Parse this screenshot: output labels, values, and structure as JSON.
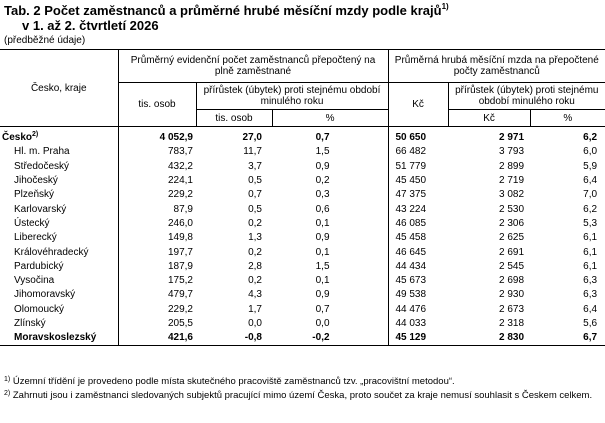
{
  "title": {
    "text": "Tab. 2 Počet zaměstnanců a průměrné hrubé měsíční mzdy podle krajů",
    "ref": "1)",
    "line2": "v 1. až 2. čtvrtletí 2026"
  },
  "note": "(předběžné údaje)",
  "table": {
    "header": {
      "region": "Česko, kraje",
      "group1": "Průměrný evidenční počet zaměstnanců přepočtený na plně zaměstnané",
      "group1_unit": "tis. osob",
      "group1_change": "přírůstek (úbytek) proti stejnému období minulého roku",
      "group1_change_units": [
        "tis. osob",
        "%"
      ],
      "group2": "Průměrná hrubá měsíční mzda na přepočtené počty zaměstnanců",
      "group2_unit": "Kč",
      "group2_change": "přírůstek (úbytek) proti stejnému období minulého roku",
      "group2_change_units": [
        "Kč",
        "%"
      ]
    },
    "rows": [
      {
        "name": "Česko",
        "ref": "2)",
        "bold": true,
        "cells": [
          "4 052,9",
          "27,0",
          "0,7",
          "50 650",
          "2 971",
          "6,2"
        ]
      },
      {
        "name": "Hl. m. Praha",
        "cells": [
          "783,7",
          "11,7",
          "1,5",
          "66 482",
          "3 793",
          "6,0"
        ]
      },
      {
        "name": "Středočeský",
        "cells": [
          "432,2",
          "3,7",
          "0,9",
          "51 779",
          "2 899",
          "5,9"
        ]
      },
      {
        "name": "Jihočeský",
        "cells": [
          "224,1",
          "0,5",
          "0,2",
          "45 450",
          "2 719",
          "6,4"
        ]
      },
      {
        "name": "Plzeňský",
        "cells": [
          "229,2",
          "0,7",
          "0,3",
          "47 375",
          "3 082",
          "7,0"
        ]
      },
      {
        "name": "Karlovarský",
        "cells": [
          "87,9",
          "0,5",
          "0,6",
          "43 224",
          "2 530",
          "6,2"
        ]
      },
      {
        "name": "Ústecký",
        "cells": [
          "246,0",
          "0,2",
          "0,1",
          "46 085",
          "2 306",
          "5,3"
        ]
      },
      {
        "name": "Liberecký",
        "cells": [
          "149,8",
          "1,3",
          "0,9",
          "45 458",
          "2 625",
          "6,1"
        ]
      },
      {
        "name": "Královéhradecký",
        "cells": [
          "197,7",
          "0,2",
          "0,1",
          "46 645",
          "2 691",
          "6,1"
        ]
      },
      {
        "name": "Pardubický",
        "cells": [
          "187,9",
          "2,8",
          "1,5",
          "44 434",
          "2 545",
          "6,1"
        ]
      },
      {
        "name": "Vysočina",
        "cells": [
          "175,2",
          "0,2",
          "0,1",
          "45 673",
          "2 698",
          "6,3"
        ]
      },
      {
        "name": "Jihomoravský",
        "cells": [
          "479,7",
          "4,3",
          "0,9",
          "49 538",
          "2 930",
          "6,3"
        ]
      },
      {
        "name": "Olomoucký",
        "cells": [
          "229,2",
          "1,7",
          "0,7",
          "44 476",
          "2 673",
          "6,4"
        ]
      },
      {
        "name": "Zlínský",
        "cells": [
          "205,5",
          "0,0",
          "0,0",
          "44 033",
          "2 318",
          "5,6"
        ]
      },
      {
        "name": "Moravskoslezský",
        "bold": true,
        "cells": [
          "421,6",
          "-0,8",
          "-0,2",
          "45 129",
          "2 830",
          "6,7"
        ]
      }
    ]
  },
  "footnotes": [
    {
      "ref": "1)",
      "text": "Územní třídění je provedeno podle místa skutečného pracoviště zaměstnanců tzv. „pracovištní metodou“."
    },
    {
      "ref": "2)",
      "text": "Zahrnuti jsou i zaměstnanci sledovaných subjektů pracující mimo území Česka, proto součet za kraje nemusí souhlasit s Českem celkem."
    }
  ]
}
